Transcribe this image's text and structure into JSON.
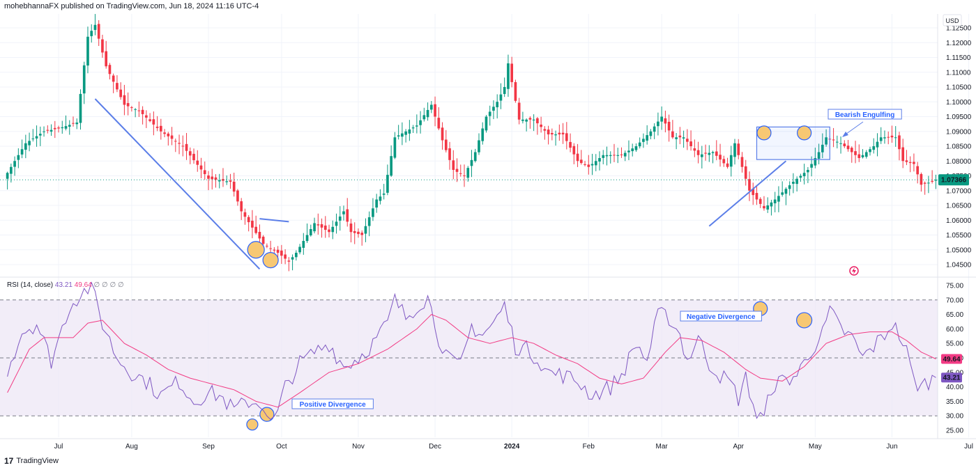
{
  "header": {
    "publisher": "mohebhannaFX published on TradingView.com, Jun 18, 2024 11:16 UTC-4"
  },
  "footer": {
    "brand": "TradingView",
    "logo_text": "17"
  },
  "price_axis": {
    "currency": "USD",
    "ticks": [
      "1.12500",
      "1.12000",
      "1.11500",
      "1.11000",
      "1.10500",
      "1.10000",
      "1.09500",
      "1.09000",
      "1.08500",
      "1.08000",
      "1.07500",
      "1.07000",
      "1.06500",
      "1.06000",
      "1.05500",
      "1.05000",
      "1.04500"
    ],
    "tick_values": [
      1.125,
      1.12,
      1.115,
      1.11,
      1.105,
      1.1,
      1.095,
      1.09,
      1.085,
      1.08,
      1.075,
      1.07,
      1.065,
      1.06,
      1.055,
      1.05,
      1.045
    ],
    "last_price_label": "1.07366",
    "last_price": 1.07366
  },
  "rsi_axis": {
    "ticks": [
      "75.00",
      "70.00",
      "65.00",
      "60.00",
      "55.00",
      "50.00",
      "45.00",
      "40.00",
      "35.00",
      "30.00",
      "25.00"
    ],
    "tick_values": [
      75,
      70,
      65,
      60,
      55,
      50,
      45,
      40,
      35,
      30,
      25
    ],
    "rsi_label": "43.21",
    "rsi_value": 43.21,
    "ma_label": "49.64",
    "ma_value": 49.64
  },
  "time_axis": {
    "labels": [
      "Jul",
      "Aug",
      "Sep",
      "Oct",
      "Nov",
      "Dec",
      "2024",
      "Feb",
      "Mar",
      "Apr",
      "May",
      "Jun",
      "Jul"
    ],
    "label_bar_index": [
      14,
      34,
      55,
      75,
      96,
      117,
      138,
      159,
      179,
      200,
      221,
      242,
      263
    ]
  },
  "rsi_legend": {
    "title": "RSI (14, close)",
    "value1": "43.21",
    "value2": "49.64",
    "extras": "∅ ∅ ∅ ∅"
  },
  "annotations": {
    "bearish_engulfing": "Bearish Engulfing",
    "negative_divergence": "Negative Divergence",
    "positive_divergence": "Positive Divergence"
  },
  "colors": {
    "up": "#089981",
    "down": "#f23645",
    "rsi_line": "#7e57c2",
    "rsi_ma": "#f23b84",
    "drawing": "#5b7ee8",
    "circle_fill": "#f7c873",
    "circle_stroke": "#2962ff",
    "last_price": "#089981",
    "rsi_band": "#ede7f6"
  },
  "chart_data": {
    "type": "candlestick",
    "symbol_currency": "USD",
    "timeframe": "daily",
    "candle_count": 255,
    "first_bar": "Jun 2023",
    "last_bar": "Jun 18, 2024",
    "keypoints": [
      [
        0,
        1.076
      ],
      [
        5,
        1.086
      ],
      [
        10,
        1.09
      ],
      [
        14,
        1.091
      ],
      [
        19,
        1.093
      ],
      [
        22,
        1.122
      ],
      [
        24,
        1.126
      ],
      [
        27,
        1.112
      ],
      [
        32,
        1.099
      ],
      [
        36,
        1.097
      ],
      [
        42,
        1.09
      ],
      [
        48,
        1.085
      ],
      [
        55,
        1.074
      ],
      [
        61,
        1.073
      ],
      [
        64,
        1.063
      ],
      [
        70,
        1.052
      ],
      [
        74,
        1.049
      ],
      [
        77,
        1.046
      ],
      [
        79,
        1.049
      ],
      [
        84,
        1.059
      ],
      [
        88,
        1.056
      ],
      [
        92,
        1.063
      ],
      [
        94,
        1.056
      ],
      [
        97,
        1.055
      ],
      [
        101,
        1.067
      ],
      [
        103,
        1.069
      ],
      [
        106,
        1.088
      ],
      [
        112,
        1.092
      ],
      [
        116,
        1.099
      ],
      [
        119,
        1.087
      ],
      [
        122,
        1.077
      ],
      [
        125,
        1.075
      ],
      [
        128,
        1.083
      ],
      [
        131,
        1.095
      ],
      [
        134,
        1.1
      ],
      [
        136,
        1.105
      ],
      [
        137,
        1.113
      ],
      [
        140,
        1.094
      ],
      [
        144,
        1.094
      ],
      [
        148,
        1.089
      ],
      [
        152,
        1.089
      ],
      [
        156,
        1.08
      ],
      [
        159,
        1.078
      ],
      [
        163,
        1.082
      ],
      [
        168,
        1.082
      ],
      [
        172,
        1.085
      ],
      [
        176,
        1.09
      ],
      [
        179,
        1.095
      ],
      [
        182,
        1.088
      ],
      [
        185,
        1.088
      ],
      [
        189,
        1.082
      ],
      [
        193,
        1.083
      ],
      [
        197,
        1.078
      ],
      [
        199,
        1.086
      ],
      [
        203,
        1.07
      ],
      [
        207,
        1.064
      ],
      [
        210,
        1.067
      ],
      [
        215,
        1.073
      ],
      [
        219,
        1.077
      ],
      [
        222,
        1.083
      ],
      [
        224,
        1.088
      ],
      [
        228,
        1.086
      ],
      [
        233,
        1.081
      ],
      [
        237,
        1.085
      ],
      [
        239,
        1.088
      ],
      [
        243,
        1.088
      ],
      [
        245,
        1.08
      ],
      [
        248,
        1.079
      ],
      [
        250,
        1.072
      ],
      [
        253,
        1.073
      ],
      [
        254,
        1.0737
      ]
    ],
    "rsi": {
      "period": 14,
      "keypoints": [
        [
          0,
          46
        ],
        [
          4,
          59
        ],
        [
          8,
          62
        ],
        [
          12,
          49
        ],
        [
          17,
          68
        ],
        [
          20,
          72
        ],
        [
          23,
          75
        ],
        [
          26,
          62
        ],
        [
          30,
          50
        ],
        [
          34,
          45
        ],
        [
          38,
          42
        ],
        [
          42,
          37
        ],
        [
          47,
          42
        ],
        [
          51,
          35
        ],
        [
          55,
          38
        ],
        [
          58,
          37
        ],
        [
          62,
          32
        ],
        [
          66,
          35
        ],
        [
          70,
          34
        ],
        [
          72,
          27
        ],
        [
          74,
          31
        ],
        [
          76,
          40
        ],
        [
          80,
          48
        ],
        [
          84,
          52
        ],
        [
          88,
          55
        ],
        [
          92,
          47
        ],
        [
          96,
          50
        ],
        [
          100,
          55
        ],
        [
          104,
          62
        ],
        [
          106,
          70
        ],
        [
          109,
          64
        ],
        [
          112,
          68
        ],
        [
          115,
          71
        ],
        [
          118,
          57
        ],
        [
          121,
          49
        ],
        [
          124,
          47
        ],
        [
          127,
          61
        ],
        [
          130,
          58
        ],
        [
          133,
          62
        ],
        [
          136,
          68
        ],
        [
          139,
          54
        ],
        [
          142,
          53
        ],
        [
          145,
          50
        ],
        [
          148,
          45
        ],
        [
          152,
          44
        ],
        [
          156,
          42
        ],
        [
          160,
          37
        ],
        [
          165,
          40
        ],
        [
          168,
          44
        ],
        [
          172,
          55
        ],
        [
          175,
          49
        ],
        [
          178,
          65
        ],
        [
          181,
          64
        ],
        [
          184,
          58
        ],
        [
          186,
          49
        ],
        [
          189,
          57
        ],
        [
          192,
          48
        ],
        [
          195,
          44
        ],
        [
          198,
          41
        ],
        [
          200,
          36
        ],
        [
          202,
          43
        ],
        [
          205,
          30
        ],
        [
          207,
          29
        ],
        [
          209,
          40
        ],
        [
          212,
          42
        ],
        [
          216,
          44
        ],
        [
          220,
          53
        ],
        [
          223,
          58
        ],
        [
          225,
          66
        ],
        [
          228,
          60
        ],
        [
          231,
          57
        ],
        [
          234,
          50
        ],
        [
          237,
          54
        ],
        [
          240,
          58
        ],
        [
          242,
          62
        ],
        [
          244,
          58
        ],
        [
          246,
          52
        ],
        [
          248,
          42
        ],
        [
          250,
          40
        ],
        [
          252,
          42
        ],
        [
          254,
          43.21
        ]
      ],
      "ma_keypoints": [
        [
          0,
          38
        ],
        [
          6,
          53
        ],
        [
          10,
          57
        ],
        [
          18,
          57
        ],
        [
          22,
          62
        ],
        [
          26,
          63
        ],
        [
          32,
          55
        ],
        [
          38,
          51
        ],
        [
          44,
          46
        ],
        [
          50,
          43
        ],
        [
          56,
          41
        ],
        [
          62,
          39
        ],
        [
          68,
          35
        ],
        [
          74,
          33
        ],
        [
          80,
          38
        ],
        [
          88,
          45
        ],
        [
          96,
          48
        ],
        [
          104,
          53
        ],
        [
          112,
          60
        ],
        [
          116,
          65
        ],
        [
          120,
          63
        ],
        [
          126,
          57
        ],
        [
          132,
          55
        ],
        [
          138,
          57
        ],
        [
          144,
          55
        ],
        [
          150,
          51
        ],
        [
          156,
          48
        ],
        [
          162,
          43
        ],
        [
          168,
          41
        ],
        [
          174,
          43
        ],
        [
          180,
          52
        ],
        [
          184,
          57
        ],
        [
          190,
          56
        ],
        [
          196,
          52
        ],
        [
          202,
          46
        ],
        [
          206,
          43
        ],
        [
          212,
          42
        ],
        [
          218,
          47
        ],
        [
          224,
          55
        ],
        [
          230,
          58
        ],
        [
          236,
          59
        ],
        [
          242,
          59
        ],
        [
          246,
          56
        ],
        [
          250,
          52
        ],
        [
          254,
          49.64
        ]
      ],
      "overbought": 70,
      "oversold": 30,
      "midline": 50
    }
  }
}
